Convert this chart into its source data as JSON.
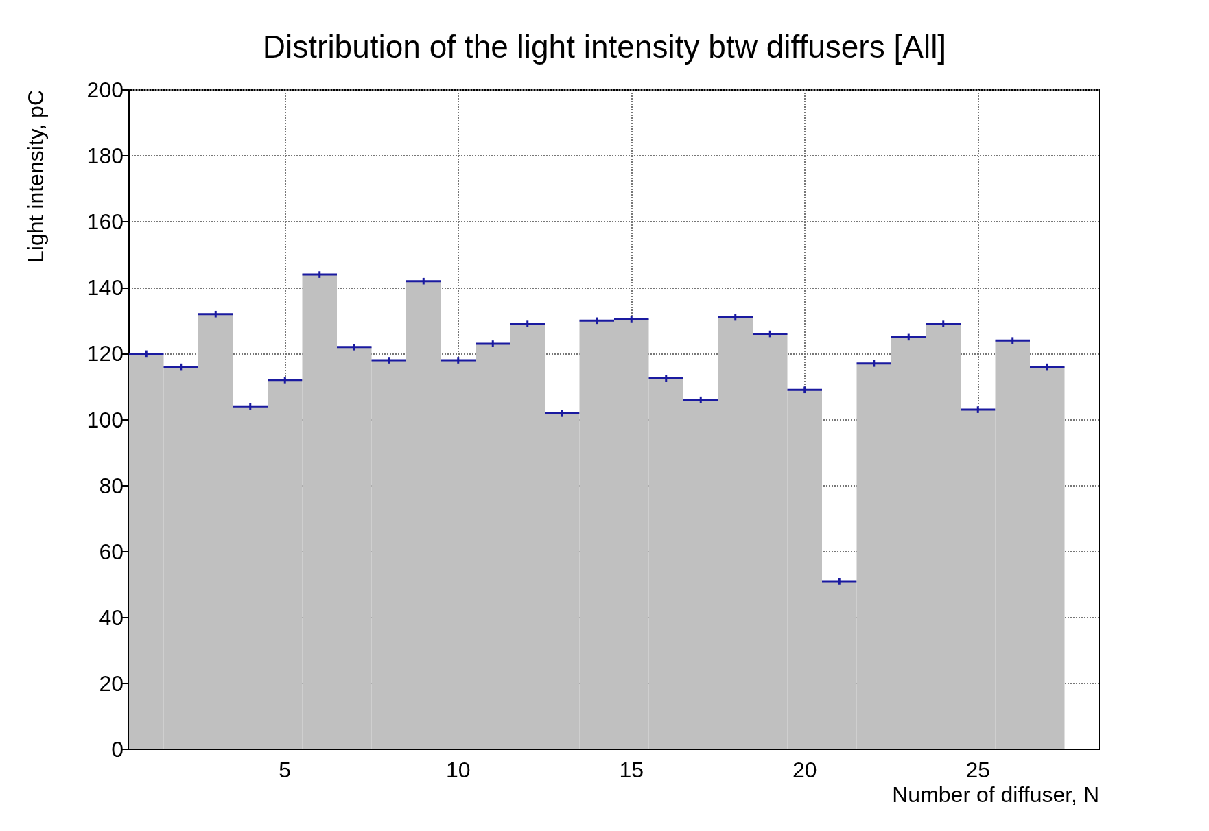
{
  "chart_data": {
    "type": "histogram",
    "title": "Distribution of the light intensity btw diffusers [All]",
    "xlabel": "Number of diffuser, N",
    "ylabel": "Light intensity, pC",
    "bins": [
      0.5,
      1.5,
      2.5,
      3.5,
      4.5,
      5.5,
      6.5,
      7.5,
      8.5,
      9.5,
      10.5,
      11.5,
      12.5,
      13.5,
      14.5,
      15.5,
      16.5,
      17.5,
      18.5,
      19.5,
      20.5,
      21.5,
      22.5,
      23.5,
      24.5,
      25.5,
      26.5,
      27.5
    ],
    "values": [
      120,
      116,
      132,
      104,
      112,
      144,
      122,
      118,
      142,
      118,
      123,
      129,
      102,
      130,
      130.5,
      112.5,
      106,
      131,
      126,
      109,
      51,
      117,
      125,
      129,
      103,
      124,
      116
    ],
    "errors": [
      1,
      1,
      1,
      1,
      1,
      1,
      1,
      1,
      1,
      1,
      1,
      1,
      1,
      1,
      1,
      1,
      1,
      1,
      1,
      1,
      1,
      1,
      1,
      1,
      1,
      1,
      1
    ],
    "color": "#c0c0c0",
    "xlim": [
      0.5,
      28.5
    ],
    "xticks": [
      5,
      10,
      15,
      20,
      25
    ],
    "ylim": [
      0,
      200
    ],
    "yticks": [
      0,
      20,
      40,
      60,
      80,
      100,
      120,
      140,
      160,
      180,
      200
    ],
    "grid": true
  }
}
